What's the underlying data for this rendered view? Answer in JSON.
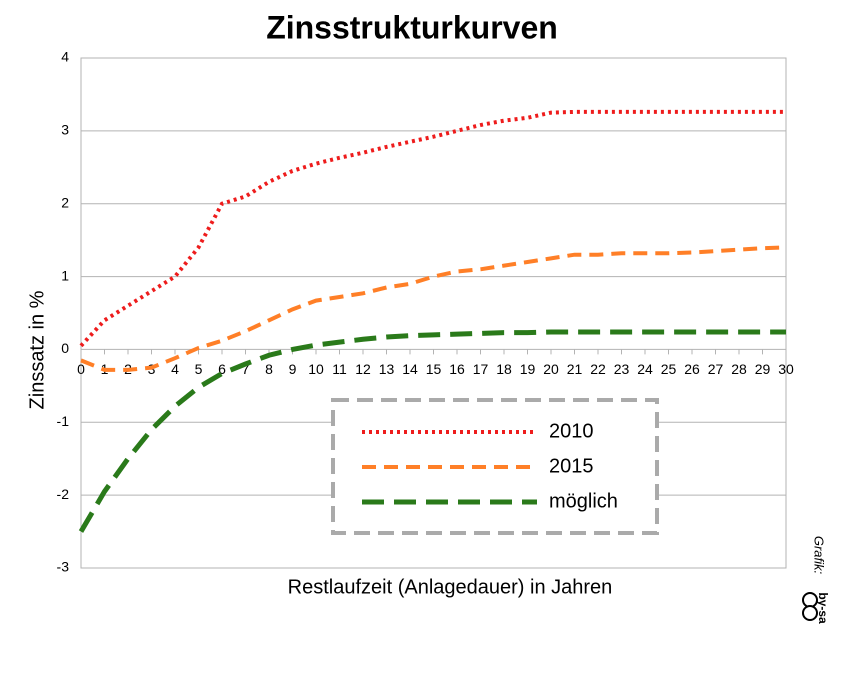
{
  "chart_data": {
    "type": "line",
    "title": "Zinsstrukturkurven",
    "x_label": "Restlaufzeit (Anlagedauer) in Jahren",
    "y_label": "Zinssatz in %",
    "x": [
      0,
      1,
      2,
      3,
      4,
      5,
      6,
      7,
      8,
      9,
      10,
      11,
      12,
      13,
      14,
      15,
      16,
      17,
      18,
      19,
      20,
      21,
      22,
      23,
      24,
      25,
      26,
      27,
      28,
      29,
      30
    ],
    "xlim": [
      0,
      30
    ],
    "xticks": [
      0,
      1,
      2,
      3,
      4,
      5,
      6,
      7,
      8,
      9,
      10,
      11,
      12,
      13,
      14,
      15,
      16,
      17,
      18,
      19,
      20,
      21,
      22,
      23,
      24,
      25,
      26,
      27,
      28,
      29,
      30
    ],
    "ylim": [
      -3,
      4
    ],
    "yticks": [
      -3,
      -2,
      -1,
      0,
      1,
      2,
      3,
      4
    ],
    "grid": true,
    "series": [
      {
        "name": "2010",
        "color": "#ee1c1c",
        "dash": "dotted",
        "values": [
          0.05,
          0.4,
          0.6,
          0.8,
          1.0,
          1.4,
          2.0,
          2.1,
          2.3,
          2.45,
          2.55,
          2.63,
          2.7,
          2.78,
          2.85,
          2.92,
          3.0,
          3.08,
          3.14,
          3.18,
          3.25,
          3.26,
          3.26,
          3.26,
          3.26,
          3.26,
          3.26,
          3.26,
          3.26,
          3.26,
          3.26
        ]
      },
      {
        "name": "2015",
        "color": "#ff7f27",
        "dash": "dashed",
        "values": [
          -0.15,
          -0.28,
          -0.28,
          -0.25,
          -0.12,
          0.02,
          0.12,
          0.25,
          0.4,
          0.55,
          0.67,
          0.72,
          0.77,
          0.85,
          0.9,
          1.0,
          1.07,
          1.1,
          1.15,
          1.2,
          1.25,
          1.3,
          1.3,
          1.32,
          1.32,
          1.32,
          1.33,
          1.35,
          1.37,
          1.39,
          1.4
        ]
      },
      {
        "name": "möglich",
        "color": "#2a7a1a",
        "dash": "long-dashed",
        "values": [
          -2.5,
          -1.95,
          -1.5,
          -1.1,
          -0.78,
          -0.52,
          -0.33,
          -0.2,
          -0.08,
          0.0,
          0.06,
          0.1,
          0.14,
          0.17,
          0.19,
          0.2,
          0.21,
          0.22,
          0.23,
          0.23,
          0.24,
          0.24,
          0.24,
          0.24,
          0.24,
          0.24,
          0.24,
          0.24,
          0.24,
          0.24,
          0.24
        ]
      }
    ],
    "annotations": [
      "Grafik:",
      "by-sa"
    ]
  }
}
